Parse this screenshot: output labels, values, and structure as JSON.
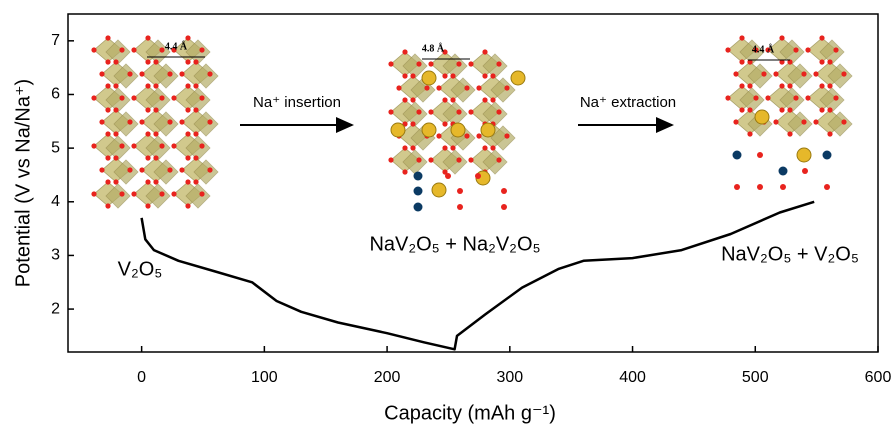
{
  "chart_data": {
    "type": "line",
    "x_label": "Capacity (mAh g⁻¹)",
    "y_label": "Potential (V vs Na/Na⁺)",
    "annotations": [
      "V₂O₅",
      "NaV₂O₅ + Na₂V₂O₅",
      "NaV₂O₅ + V₂O₅",
      "Na⁺ insertion",
      "Na⁺ extraction",
      "4.4 Å",
      "4.8 Å",
      "4.4 Å"
    ],
    "series": [
      {
        "color": "#000000",
        "x": [
          0,
          3,
          10,
          30,
          60,
          90,
          110,
          130,
          160,
          200,
          230,
          255,
          257,
          280,
          310,
          340,
          360,
          400,
          440,
          480,
          520,
          548
        ],
        "values": [
          3.7,
          3.3,
          3.1,
          2.9,
          2.7,
          2.5,
          2.15,
          1.95,
          1.75,
          1.55,
          1.38,
          1.25,
          1.5,
          1.9,
          2.4,
          2.75,
          2.9,
          2.95,
          3.1,
          3.4,
          3.8,
          4.0
        ]
      }
    ],
    "xlim": [
      -60,
      600
    ],
    "ylim": [
      1.2,
      7.5
    ],
    "xticks": [
      0,
      100,
      200,
      300,
      400,
      500,
      600
    ],
    "yticks": [
      2,
      3,
      4,
      5,
      6,
      7
    ],
    "grid": false
  }
}
